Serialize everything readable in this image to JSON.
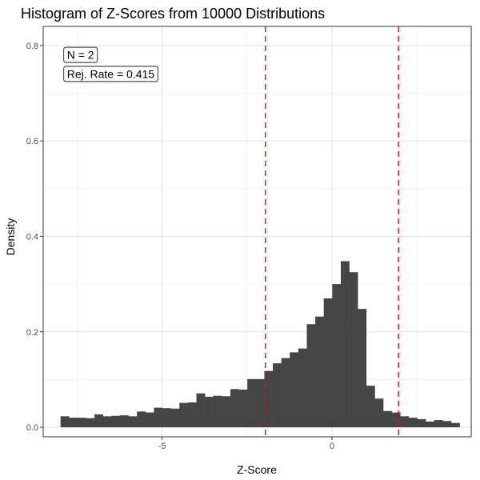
{
  "chart_data": {
    "type": "bar",
    "title": "Histogram of Z-Scores from 10000 Distributions",
    "xlabel": "Z-Score",
    "ylabel": "Density",
    "xlim": [
      -8.5,
      4.1
    ],
    "ylim": [
      -0.02,
      0.84
    ],
    "x_ticks": [
      -5,
      0
    ],
    "x_tick_labels": [
      "-5",
      "0"
    ],
    "y_ticks": [
      0.0,
      0.2,
      0.4,
      0.6,
      0.8
    ],
    "y_tick_labels": [
      "0.0",
      "0.2",
      "0.4",
      "0.6",
      "0.8"
    ],
    "grid": true,
    "bin_width": 0.25,
    "bin_start": -7.99,
    "values": [
      0.023,
      0.02,
      0.02,
      0.019,
      0.027,
      0.023,
      0.024,
      0.025,
      0.023,
      0.033,
      0.031,
      0.041,
      0.04,
      0.039,
      0.051,
      0.052,
      0.071,
      0.064,
      0.066,
      0.065,
      0.08,
      0.079,
      0.101,
      0.101,
      0.118,
      0.134,
      0.145,
      0.157,
      0.165,
      0.216,
      0.232,
      0.27,
      0.3,
      0.348,
      0.325,
      0.248,
      0.087,
      0.06,
      0.034,
      0.031,
      0.023,
      0.02,
      0.017,
      0.012,
      0.015,
      0.013,
      0.009
    ],
    "bar_color": "#454545",
    "reference_lines": [
      {
        "x": -1.96,
        "color": "#ff0000",
        "style": "dashed"
      },
      {
        "x": 1.96,
        "color": "#ff0000",
        "style": "dashed"
      }
    ],
    "annotations": [
      {
        "text": "N = 2",
        "x": -7.8,
        "y": 0.772
      },
      {
        "text": "Rej. Rate = 0.415",
        "x": -7.8,
        "y": 0.732
      }
    ]
  }
}
